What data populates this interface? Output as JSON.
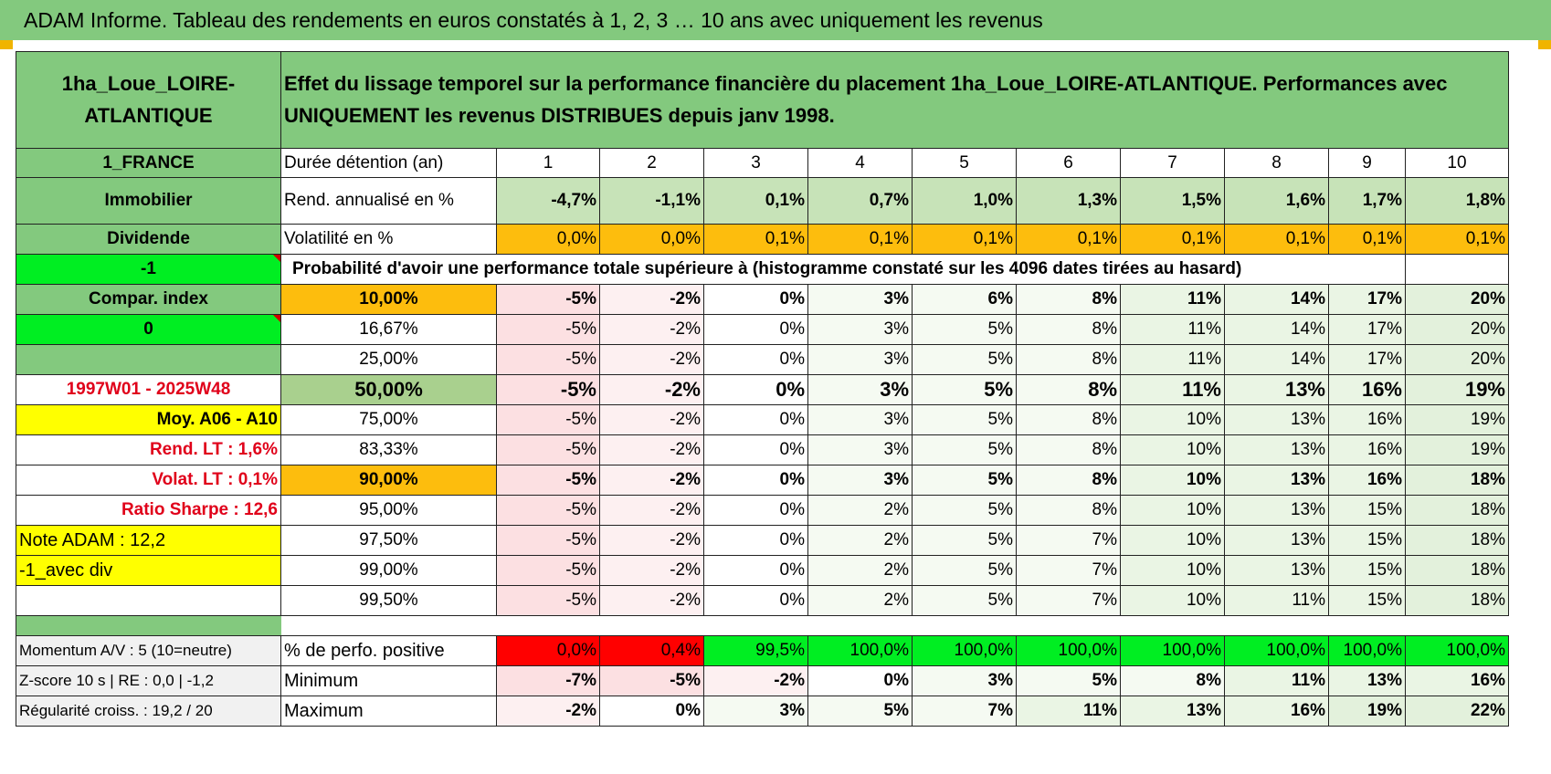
{
  "title": "ADAM Informe. Tableau des rendements en euros constatés à 1, 2, 3 … 10 ans avec uniquement les revenus",
  "header": {
    "fund_name": "1ha_Loue_LOIRE-ATLANTIQUE",
    "description": "Effet du lissage temporel sur la performance financière du placement 1ha_Loue_LOIRE-ATLANTIQUE. Performances avec UNIQUEMENT les revenus DISTRIBUES depuis janv 1998."
  },
  "left": {
    "country": "1_FRANCE",
    "asset_class": "Immobilier",
    "income_type": "Dividende",
    "param1": "-1",
    "compar_label": "Compar. index",
    "param2": "0",
    "period": "1997W01 - 2025W48",
    "moy": "Moy. A06 - A10",
    "rend_lt": "Rend. LT :   1,6%",
    "volat_lt": "Volat. LT :   0,1%",
    "sharpe": "Ratio Sharpe :    12,6",
    "note": "Note ADAM : 12,2",
    "variant": "-1_avec div",
    "momentum": "Momentum A/V : 5 (10=neutre)",
    "zscore": "Z-score 10 s | RE : 0,0 | -1,2",
    "regularite": "Régularité croiss. : 19,2 / 20"
  },
  "labels": {
    "duration": "Durée détention (an)",
    "rend": "Rend. annualisé en %",
    "volat": "Volatilité en %",
    "proba": "Probabilité d'avoir une performance totale supérieure à (histogramme constaté sur les 4096 dates tirées au hasard)",
    "positive": "% de perfo. positive",
    "minimum": "Minimum",
    "maximum": "Maximum"
  },
  "years": [
    "1",
    "2",
    "3",
    "4",
    "5",
    "6",
    "7",
    "8",
    "9",
    "10"
  ],
  "rend": [
    "-4,7%",
    "-1,1%",
    "0,1%",
    "0,7%",
    "1,0%",
    "1,3%",
    "1,5%",
    "1,6%",
    "1,7%",
    "1,8%"
  ],
  "volat": [
    "0,0%",
    "0,0%",
    "0,1%",
    "0,1%",
    "0,1%",
    "0,1%",
    "0,1%",
    "0,1%",
    "0,1%",
    "0,1%"
  ],
  "percentiles": [
    {
      "p": "10,00%",
      "v": [
        "-5%",
        "-2%",
        "0%",
        "3%",
        "6%",
        "8%",
        "11%",
        "14%",
        "17%",
        "20%"
      ]
    },
    {
      "p": "16,67%",
      "v": [
        "-5%",
        "-2%",
        "0%",
        "3%",
        "5%",
        "8%",
        "11%",
        "14%",
        "17%",
        "20%"
      ]
    },
    {
      "p": "25,00%",
      "v": [
        "-5%",
        "-2%",
        "0%",
        "3%",
        "5%",
        "8%",
        "11%",
        "14%",
        "17%",
        "20%"
      ]
    },
    {
      "p": "50,00%",
      "v": [
        "-5%",
        "-2%",
        "0%",
        "3%",
        "5%",
        "8%",
        "11%",
        "13%",
        "16%",
        "19%"
      ]
    },
    {
      "p": "75,00%",
      "v": [
        "-5%",
        "-2%",
        "0%",
        "3%",
        "5%",
        "8%",
        "10%",
        "13%",
        "16%",
        "19%"
      ]
    },
    {
      "p": "83,33%",
      "v": [
        "-5%",
        "-2%",
        "0%",
        "3%",
        "5%",
        "8%",
        "10%",
        "13%",
        "16%",
        "19%"
      ]
    },
    {
      "p": "90,00%",
      "v": [
        "-5%",
        "-2%",
        "0%",
        "3%",
        "5%",
        "8%",
        "10%",
        "13%",
        "16%",
        "18%"
      ]
    },
    {
      "p": "95,00%",
      "v": [
        "-5%",
        "-2%",
        "0%",
        "2%",
        "5%",
        "8%",
        "10%",
        "13%",
        "15%",
        "18%"
      ]
    },
    {
      "p": "97,50%",
      "v": [
        "-5%",
        "-2%",
        "0%",
        "2%",
        "5%",
        "7%",
        "10%",
        "13%",
        "15%",
        "18%"
      ]
    },
    {
      "p": "99,00%",
      "v": [
        "-5%",
        "-2%",
        "0%",
        "2%",
        "5%",
        "7%",
        "10%",
        "13%",
        "15%",
        "18%"
      ]
    },
    {
      "p": "99,50%",
      "v": [
        "-5%",
        "-2%",
        "0%",
        "2%",
        "5%",
        "7%",
        "10%",
        "11%",
        "15%",
        "18%"
      ]
    }
  ],
  "positive": [
    "0,0%",
    "0,4%",
    "99,5%",
    "100,0%",
    "100,0%",
    "100,0%",
    "100,0%",
    "100,0%",
    "100,0%",
    "100,0%"
  ],
  "minimum": [
    "-7%",
    "-5%",
    "-2%",
    "0%",
    "3%",
    "5%",
    "8%",
    "11%",
    "13%",
    "16%"
  ],
  "maximum": [
    "-2%",
    "0%",
    "3%",
    "5%",
    "7%",
    "11%",
    "13%",
    "16%",
    "19%",
    "22%"
  ],
  "colors": {
    "header_green": "#83c97e",
    "light_green": "#c7e3b8",
    "orange": "#fdbd0d",
    "bright_green": "#00ee22",
    "yellow": "#ffff00",
    "red": "#ff0000"
  }
}
